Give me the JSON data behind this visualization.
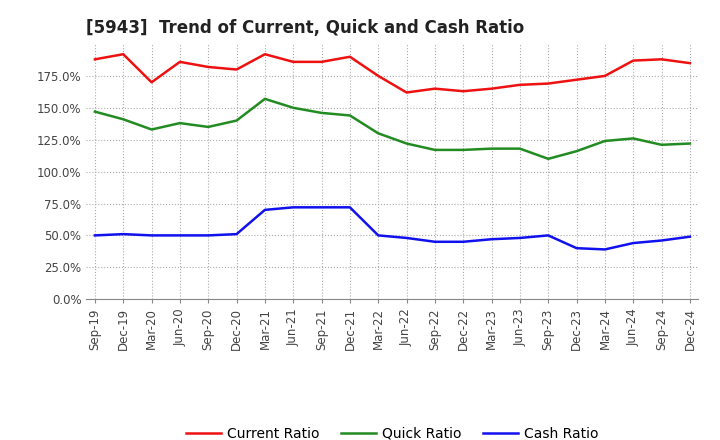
{
  "title": "[5943]  Trend of Current, Quick and Cash Ratio",
  "x_labels": [
    "Sep-19",
    "Dec-19",
    "Mar-20",
    "Jun-20",
    "Sep-20",
    "Dec-20",
    "Mar-21",
    "Jun-21",
    "Sep-21",
    "Dec-21",
    "Mar-22",
    "Jun-22",
    "Sep-22",
    "Dec-22",
    "Mar-23",
    "Jun-23",
    "Sep-23",
    "Dec-23",
    "Mar-24",
    "Jun-24",
    "Sep-24",
    "Dec-24"
  ],
  "current_ratio": [
    188,
    192,
    170,
    186,
    182,
    180,
    192,
    186,
    186,
    190,
    175,
    162,
    165,
    163,
    165,
    168,
    169,
    172,
    175,
    187,
    188,
    185
  ],
  "quick_ratio": [
    147,
    141,
    133,
    138,
    135,
    140,
    157,
    150,
    146,
    144,
    130,
    122,
    117,
    117,
    118,
    118,
    110,
    116,
    124,
    126,
    121,
    122
  ],
  "cash_ratio": [
    50,
    51,
    50,
    50,
    50,
    51,
    70,
    72,
    72,
    72,
    50,
    48,
    45,
    45,
    47,
    48,
    50,
    40,
    39,
    44,
    46,
    49
  ],
  "current_color": "#EE1111",
  "quick_color": "#228B22",
  "cash_color": "#1111EE",
  "ylim": [
    0,
    200
  ],
  "yticks": [
    0,
    25,
    50,
    75,
    100,
    125,
    150,
    175
  ],
  "background_color": "#FFFFFF",
  "grid_color": "#AAAAAA",
  "title_fontsize": 12,
  "tick_fontsize": 8.5,
  "legend_fontsize": 10
}
